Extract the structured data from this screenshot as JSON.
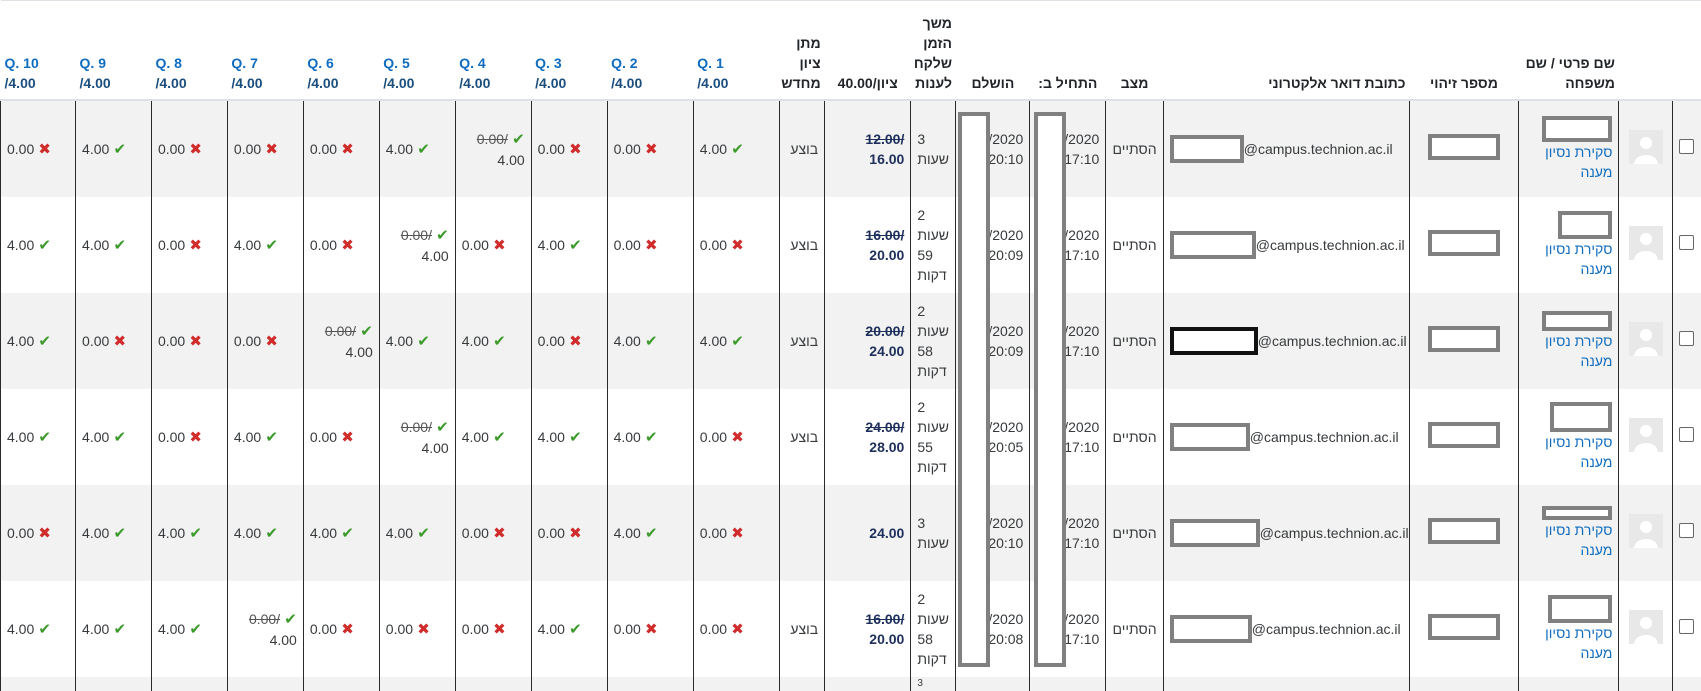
{
  "headers": {
    "name": "שם פרטי / שם משפחה",
    "id": "מספר זיהוי",
    "email": "כתובת דואר אלקטרוני",
    "state": "מצב",
    "started": "התחיל ב:",
    "completed": "הושלם",
    "duration": "משך הזמן שלקח לענות",
    "grade": "ציון/40.00",
    "regrade": "מתן ציון מחדש",
    "questions": [
      {
        "name": "Q. 1",
        "max": "/4.00"
      },
      {
        "name": "Q. 2",
        "max": "/4.00"
      },
      {
        "name": "Q. 3",
        "max": "/4.00"
      },
      {
        "name": "Q. 4",
        "max": "/4.00"
      },
      {
        "name": "Q. 5",
        "max": "/4.00"
      },
      {
        "name": "Q. 6",
        "max": "/4.00"
      },
      {
        "name": "Q. 7",
        "max": "/4.00"
      },
      {
        "name": "Q. 8",
        "max": "/4.00"
      },
      {
        "name": "Q. 9",
        "max": "/4.00"
      },
      {
        "name": "Q. 10",
        "max": "/4.00"
      }
    ]
  },
  "review_label": "סקירת נסיון מענה",
  "email_domain": "@campus.technion.ac.il",
  "rows": [
    {
      "state": "הסתיים",
      "started_date": "/2020",
      "started_time": "17:10",
      "completed_date": "/2020",
      "completed_time": "20:10",
      "dur1": "3",
      "dur2": "שעות",
      "dur3": "",
      "grade_old": "12.00/",
      "grade_new": "16.00",
      "regrade": "בוצע",
      "marks": [
        {
          "v": "4.00",
          "ok": true
        },
        {
          "v": "0.00",
          "ok": false
        },
        {
          "v": "0.00",
          "ok": false
        },
        {
          "v": "4.00",
          "ok": true,
          "old": "0.00/"
        },
        {
          "v": "4.00",
          "ok": true
        },
        {
          "v": "0.00",
          "ok": false
        },
        {
          "v": "0.00",
          "ok": false
        },
        {
          "v": "0.00",
          "ok": false
        },
        {
          "v": "4.00",
          "ok": true
        },
        {
          "v": "0.00",
          "ok": false
        }
      ]
    },
    {
      "state": "הסתיים",
      "started_date": "/2020",
      "started_time": "17:10",
      "completed_date": "/2020",
      "completed_time": "20:09",
      "dur1": "2",
      "dur2": "שעות",
      "dur3": "59 דקות",
      "grade_old": "16.00/",
      "grade_new": "20.00",
      "regrade": "בוצע",
      "marks": [
        {
          "v": "0.00",
          "ok": false
        },
        {
          "v": "0.00",
          "ok": false
        },
        {
          "v": "4.00",
          "ok": true
        },
        {
          "v": "0.00",
          "ok": false
        },
        {
          "v": "4.00",
          "ok": true,
          "old": "0.00/"
        },
        {
          "v": "0.00",
          "ok": false
        },
        {
          "v": "4.00",
          "ok": true
        },
        {
          "v": "0.00",
          "ok": false
        },
        {
          "v": "4.00",
          "ok": true
        },
        {
          "v": "4.00",
          "ok": true
        }
      ]
    },
    {
      "state": "הסתיים",
      "started_date": "/2020",
      "started_time": "17:10",
      "completed_date": "/2020",
      "completed_time": "20:09",
      "dur1": "2",
      "dur2": "שעות",
      "dur3": "58 דקות",
      "grade_old": "20.00/",
      "grade_new": "24.00",
      "regrade": "בוצע",
      "marks": [
        {
          "v": "4.00",
          "ok": true
        },
        {
          "v": "4.00",
          "ok": true
        },
        {
          "v": "0.00",
          "ok": false
        },
        {
          "v": "4.00",
          "ok": true
        },
        {
          "v": "4.00",
          "ok": true
        },
        {
          "v": "4.00",
          "ok": true,
          "old": "0.00/"
        },
        {
          "v": "0.00",
          "ok": false
        },
        {
          "v": "0.00",
          "ok": false
        },
        {
          "v": "0.00",
          "ok": false
        },
        {
          "v": "4.00",
          "ok": true
        }
      ]
    },
    {
      "state": "הסתיים",
      "started_date": "/2020",
      "started_time": "17:10",
      "completed_date": "/2020",
      "completed_time": "20:05",
      "dur1": "2",
      "dur2": "שעות",
      "dur3": "55 דקות",
      "grade_old": "24.00/",
      "grade_new": "28.00",
      "regrade": "בוצע",
      "marks": [
        {
          "v": "0.00",
          "ok": false
        },
        {
          "v": "4.00",
          "ok": true
        },
        {
          "v": "4.00",
          "ok": true
        },
        {
          "v": "4.00",
          "ok": true
        },
        {
          "v": "4.00",
          "ok": true,
          "old": "0.00/"
        },
        {
          "v": "0.00",
          "ok": false
        },
        {
          "v": "4.00",
          "ok": true
        },
        {
          "v": "0.00",
          "ok": false
        },
        {
          "v": "4.00",
          "ok": true
        },
        {
          "v": "4.00",
          "ok": true
        }
      ]
    },
    {
      "state": "הסתיים",
      "started_date": "/2020",
      "started_time": "17:10",
      "completed_date": "/2020",
      "completed_time": "20:10",
      "dur1": "3",
      "dur2": "שעות",
      "dur3": "",
      "grade_old": "",
      "grade_new": "24.00",
      "regrade": "",
      "marks": [
        {
          "v": "0.00",
          "ok": false
        },
        {
          "v": "4.00",
          "ok": true
        },
        {
          "v": "0.00",
          "ok": false
        },
        {
          "v": "0.00",
          "ok": false
        },
        {
          "v": "4.00",
          "ok": true
        },
        {
          "v": "4.00",
          "ok": true
        },
        {
          "v": "4.00",
          "ok": true
        },
        {
          "v": "4.00",
          "ok": true
        },
        {
          "v": "4.00",
          "ok": true
        },
        {
          "v": "0.00",
          "ok": false
        }
      ]
    },
    {
      "state": "הסתיים",
      "started_date": "/2020",
      "started_time": "17:10",
      "completed_date": "/2020",
      "completed_time": "20:08",
      "dur1": "2",
      "dur2": "שעות",
      "dur3": "58 דקות",
      "grade_old": "16.00/",
      "grade_new": "20.00",
      "regrade": "בוצע",
      "marks": [
        {
          "v": "0.00",
          "ok": false
        },
        {
          "v": "0.00",
          "ok": false
        },
        {
          "v": "4.00",
          "ok": true
        },
        {
          "v": "0.00",
          "ok": false
        },
        {
          "v": "0.00",
          "ok": false
        },
        {
          "v": "0.00",
          "ok": false
        },
        {
          "v": "4.00",
          "ok": true,
          "old": "0.00/"
        },
        {
          "v": "4.00",
          "ok": true
        },
        {
          "v": "4.00",
          "ok": true
        },
        {
          "v": "4.00",
          "ok": true
        }
      ]
    }
  ],
  "partial_row": {
    "dur1": "3"
  }
}
